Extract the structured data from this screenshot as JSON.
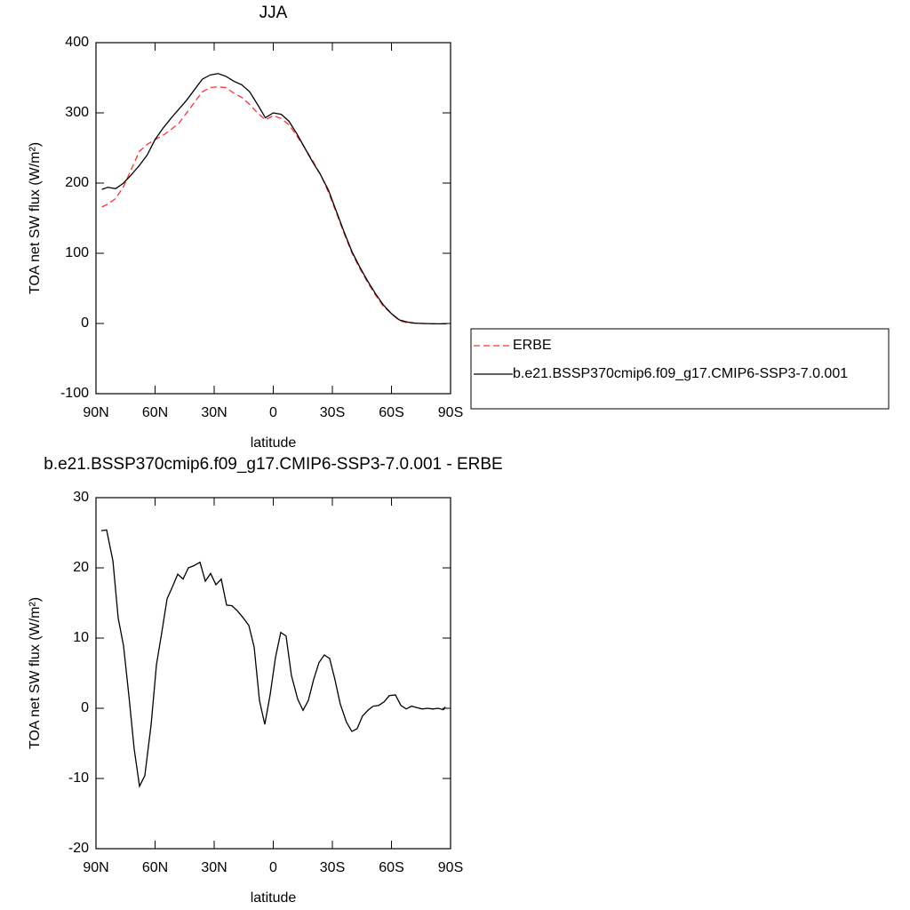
{
  "chart_data": [
    {
      "type": "line",
      "title": "JJA",
      "xlabel": "latitude",
      "ylabel": "TOA net SW flux (W/m²)",
      "x": [
        87,
        84,
        80,
        76,
        72,
        68,
        64,
        60,
        56,
        52,
        48,
        44,
        40,
        36,
        32,
        28,
        24,
        20,
        16,
        12,
        8,
        4,
        0,
        -4,
        -8,
        -12,
        -16,
        -20,
        -24,
        -28,
        -32,
        -36,
        -40,
        -44,
        -48,
        -52,
        -56,
        -60,
        -64,
        -68,
        -72,
        -76,
        -80,
        -84,
        -88
      ],
      "series": [
        {
          "name": "ERBE",
          "color": "#ff3030",
          "line_style": "dashed",
          "values": [
            166,
            170,
            178,
            195,
            220,
            245,
            255,
            262,
            268,
            276,
            285,
            300,
            315,
            330,
            336,
            337,
            336,
            328,
            322,
            312,
            300,
            290,
            296,
            292,
            283,
            267,
            250,
            232,
            212,
            187,
            158,
            128,
            100,
            78,
            58,
            40,
            24,
            14,
            4,
            1,
            0.3,
            0,
            -0.3,
            -0.5,
            -0.5
          ]
        },
        {
          "name": "b.e21.BSSP370cmip6.f09_g17.CMIP6-SSP3-7.0.001",
          "color": "#000000",
          "line_style": "solid",
          "values": [
            191,
            194,
            192,
            200,
            212,
            225,
            240,
            262,
            278,
            292,
            305,
            318,
            333,
            348,
            354,
            356,
            352,
            345,
            340,
            330,
            312,
            293,
            300,
            298,
            288,
            270,
            250,
            230,
            212,
            190,
            160,
            130,
            102,
            80,
            60,
            42,
            26,
            14,
            5,
            2,
            0.5,
            0,
            -0.3,
            -0.5,
            -0.5
          ]
        }
      ],
      "xlim": [
        90,
        -90
      ],
      "xticks": [
        {
          "value": 90,
          "label": "90N"
        },
        {
          "value": 60,
          "label": "60N"
        },
        {
          "value": 30,
          "label": "30N"
        },
        0,
        {
          "value": -30,
          "label": "30S"
        },
        {
          "value": -60,
          "label": "60S"
        },
        {
          "value": -90,
          "label": "90S"
        }
      ],
      "ylim": [
        -100,
        400
      ],
      "yticks": [
        -100,
        0,
        100,
        200,
        300,
        400
      ],
      "legend": "right"
    },
    {
      "type": "line",
      "title": "b.e21.BSSP370cmip6.f09_g17.CMIP6-SSP3-7.0.001 - ERBE",
      "xlabel": "latitude",
      "ylabel": "TOA net SW flux (W/m²)",
      "x": [
        87.3,
        84.6,
        81.4,
        78.7,
        76,
        73.3,
        70.6,
        67.9,
        65.2,
        62,
        59.3,
        56.6,
        53.9,
        51.2,
        48.5,
        45.8,
        43.1,
        40.4,
        37.2,
        34.5,
        31.8,
        29.1,
        26.4,
        23.7,
        21,
        18.3,
        15.6,
        12.4,
        9.7,
        7,
        4.3,
        1.6,
        -1.1,
        -3.8,
        -6.5,
        -9.2,
        -12.4,
        -15.1,
        -17.8,
        -20.5,
        -23.2,
        -25.9,
        -28.6,
        -31.3,
        -34,
        -37.2,
        -39.9,
        -42.6,
        -45.3,
        -48,
        -50.7,
        -53.5,
        -56.2,
        -58.9,
        -62,
        -64.8,
        -67.5,
        -70.2,
        -72.9,
        -75.6,
        -78.3,
        -81,
        -83.7,
        -86.4,
        -87.3
      ],
      "series": [
        {
          "color": "#000000",
          "line_style": "solid",
          "values": [
            25.3,
            25.4,
            21,
            12.8,
            8.9,
            1.8,
            -5.8,
            -11.1,
            -9.6,
            -2.3,
            6.2,
            10.8,
            15.6,
            17.3,
            19.1,
            18.4,
            20,
            20.3,
            20.8,
            18.1,
            19.2,
            17.6,
            18.4,
            14.7,
            14.6,
            13.9,
            13,
            11.8,
            8.7,
            1.1,
            -2.3,
            1.9,
            7.2,
            10.8,
            10.3,
            4.7,
            1.3,
            -0.3,
            1.1,
            4.1,
            6.5,
            7.6,
            7.1,
            4.1,
            0.6,
            -2,
            -3.3,
            -2.9,
            -1.1,
            -0.3,
            0.3,
            0.4,
            0.9,
            1.8,
            1.9,
            0.4,
            -0.1,
            0.3,
            0.1,
            -0.1,
            0,
            -0.1,
            0,
            -0.2,
            0.2
          ]
        }
      ],
      "xlim": [
        90,
        -90
      ],
      "xticks": [
        {
          "value": 90,
          "label": "90N"
        },
        {
          "value": 60,
          "label": "60N"
        },
        {
          "value": 30,
          "label": "30N"
        },
        0,
        {
          "value": -30,
          "label": "30S"
        },
        {
          "value": -60,
          "label": "60S"
        },
        {
          "value": -90,
          "label": "90S"
        }
      ],
      "ylim": [
        -20,
        30
      ],
      "yticks": [
        -20,
        -10,
        0,
        10,
        20,
        30
      ]
    }
  ]
}
